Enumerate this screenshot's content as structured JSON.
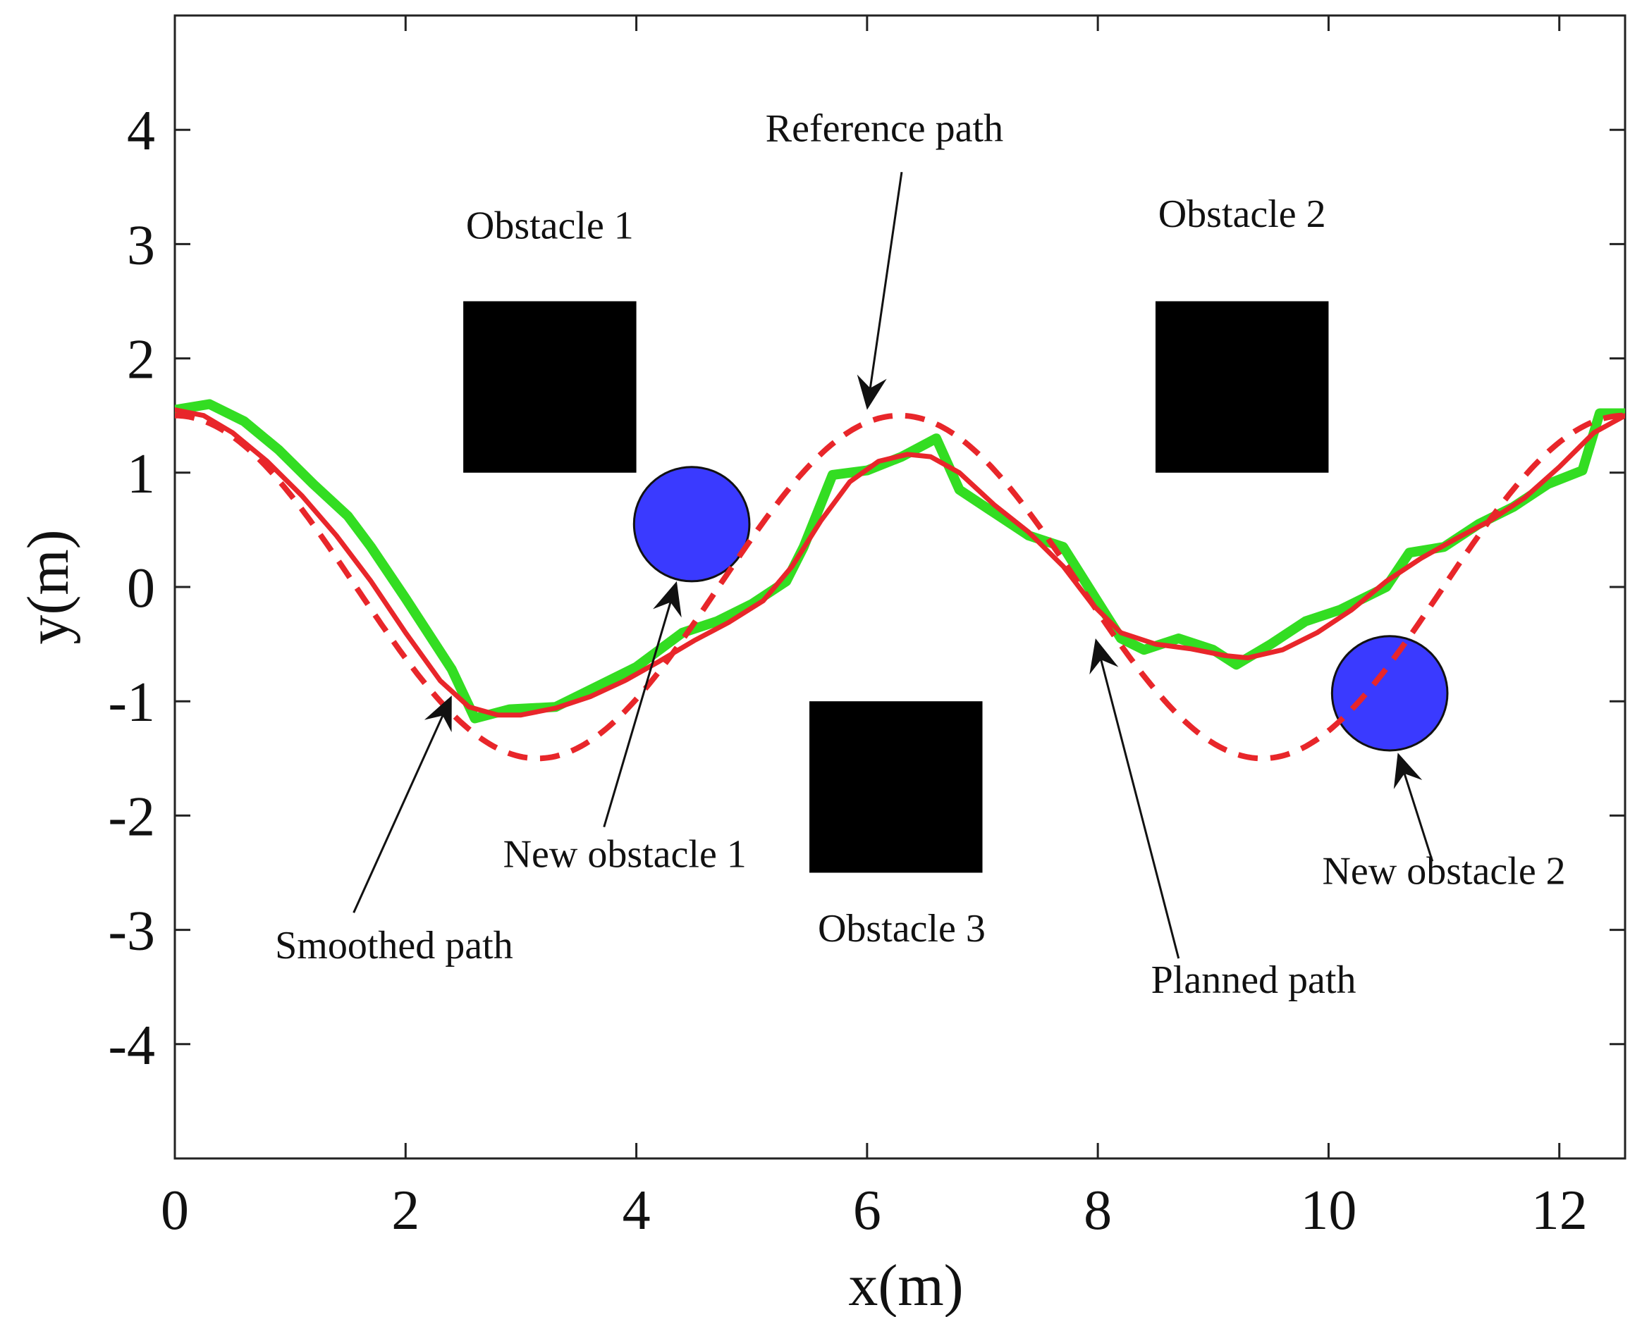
{
  "chart_data": {
    "type": "line",
    "title": "",
    "xlabel": "x(m)",
    "ylabel": "y(m)",
    "xlim": [
      0,
      12.57
    ],
    "ylim": [
      -5,
      5
    ],
    "xticks": [
      0,
      2,
      4,
      6,
      8,
      10,
      12
    ],
    "yticks": [
      -4,
      -3,
      -2,
      -1,
      0,
      1,
      2,
      3,
      4
    ],
    "xtick_labels": [
      "0",
      "2",
      "4",
      "6",
      "8",
      "10",
      "12"
    ],
    "ytick_labels": [
      "-4",
      "-3",
      "-2",
      "-1",
      "0",
      "1",
      "2",
      "3",
      "4"
    ],
    "grid": false,
    "colors": {
      "reference": "#e8262a",
      "smoothed": "#e8262a",
      "planned": "#33dd22",
      "static_obstacle": "#000000",
      "new_obstacle": "#3a3aff"
    },
    "series": [
      {
        "name": "Reference path",
        "style": "dashed",
        "formula": "y = 1.5*cos(x)",
        "x_range": [
          0,
          12.57
        ]
      },
      {
        "name": "Planned path",
        "style": "solid",
        "x": [
          0,
          0.3,
          0.6,
          0.9,
          1.2,
          1.5,
          1.7,
          2.0,
          2.4,
          2.6,
          2.9,
          3.3,
          3.7,
          4.0,
          4.4,
          4.7,
          5.0,
          5.3,
          5.45,
          5.7,
          6.0,
          6.3,
          6.6,
          6.8,
          7.1,
          7.4,
          7.7,
          7.95,
          8.2,
          8.4,
          8.7,
          9.0,
          9.2,
          9.5,
          9.8,
          10.1,
          10.5,
          10.7,
          11.0,
          11.3,
          11.6,
          11.9,
          12.2,
          12.35,
          12.57
        ],
        "y": [
          1.55,
          1.6,
          1.45,
          1.2,
          0.9,
          0.62,
          0.35,
          -0.1,
          -0.72,
          -1.15,
          -1.07,
          -1.05,
          -0.85,
          -0.7,
          -0.4,
          -0.3,
          -0.15,
          0.05,
          0.35,
          0.98,
          1.02,
          1.14,
          1.3,
          0.85,
          0.65,
          0.45,
          0.35,
          -0.05,
          -0.45,
          -0.55,
          -0.45,
          -0.55,
          -0.68,
          -0.5,
          -0.3,
          -0.2,
          0.0,
          0.3,
          0.35,
          0.55,
          0.7,
          0.9,
          1.02,
          1.52,
          1.52
        ]
      },
      {
        "name": "Smoothed path",
        "style": "solid",
        "x": [
          0,
          0.25,
          0.5,
          0.8,
          1.1,
          1.4,
          1.7,
          2.0,
          2.3,
          2.55,
          2.8,
          3.0,
          3.3,
          3.6,
          3.9,
          4.2,
          4.5,
          4.8,
          5.1,
          5.35,
          5.6,
          5.85,
          6.1,
          6.35,
          6.55,
          6.8,
          7.1,
          7.4,
          7.7,
          7.95,
          8.2,
          8.5,
          8.8,
          9.1,
          9.3,
          9.6,
          9.9,
          10.2,
          10.5,
          10.8,
          11.1,
          11.4,
          11.7,
          12.0,
          12.3,
          12.57
        ],
        "y": [
          1.55,
          1.5,
          1.35,
          1.1,
          0.8,
          0.45,
          0.05,
          -0.4,
          -0.82,
          -1.05,
          -1.12,
          -1.12,
          -1.06,
          -0.96,
          -0.82,
          -0.65,
          -0.47,
          -0.31,
          -0.12,
          0.18,
          0.58,
          0.92,
          1.1,
          1.16,
          1.14,
          1.0,
          0.72,
          0.48,
          0.18,
          -0.15,
          -0.4,
          -0.5,
          -0.54,
          -0.6,
          -0.62,
          -0.55,
          -0.4,
          -0.2,
          0.05,
          0.25,
          0.42,
          0.58,
          0.78,
          1.05,
          1.35,
          1.5
        ]
      }
    ],
    "obstacles": [
      {
        "name": "Obstacle 1",
        "shape": "square",
        "x": [
          2.5,
          4.0
        ],
        "y": [
          1.0,
          2.5
        ]
      },
      {
        "name": "Obstacle 2",
        "shape": "square",
        "x": [
          8.5,
          10.0
        ],
        "y": [
          1.0,
          2.5
        ]
      },
      {
        "name": "Obstacle 3",
        "shape": "square",
        "x": [
          5.5,
          7.0
        ],
        "y": [
          -2.5,
          -1.0
        ]
      },
      {
        "name": "New obstacle 1",
        "shape": "circle",
        "cx": 4.48,
        "cy": 0.55,
        "r": 0.5
      },
      {
        "name": "New obstacle 2",
        "shape": "circle",
        "cx": 10.53,
        "cy": -0.93,
        "r": 0.5
      }
    ],
    "annotations": [
      {
        "id": "ann-reference",
        "text": "Reference path",
        "text_at": [
          6.15,
          3.9
        ],
        "tail": [
          6.3,
          3.63
        ],
        "head": [
          6.0,
          1.55
        ]
      },
      {
        "id": "ann-obstacle1",
        "text": "Obstacle 1",
        "text_at": [
          3.25,
          3.05
        ]
      },
      {
        "id": "ann-obstacle2",
        "text": "Obstacle 2",
        "text_at": [
          9.25,
          3.15
        ]
      },
      {
        "id": "ann-obstacle3",
        "text": "Obstacle 3",
        "text_at": [
          6.3,
          -3.1
        ]
      },
      {
        "id": "ann-new1",
        "text": "New obstacle 1",
        "text_at": [
          3.9,
          -2.45
        ],
        "tail": [
          3.72,
          -2.1
        ],
        "head": [
          4.35,
          0.05
        ]
      },
      {
        "id": "ann-new2",
        "text": "New obstacle 2",
        "text_at": [
          11.0,
          -2.6
        ],
        "tail": [
          10.9,
          -2.4
        ],
        "head": [
          10.6,
          -1.45
        ]
      },
      {
        "id": "ann-smoothed",
        "text": "Smoothed path",
        "text_at": [
          1.9,
          -3.25
        ],
        "tail": [
          1.55,
          -2.85
        ],
        "head": [
          2.4,
          -0.95
        ]
      },
      {
        "id": "ann-planned",
        "text": "Planned path",
        "text_at": [
          9.35,
          -3.55
        ],
        "tail": [
          8.7,
          -3.25
        ],
        "head": [
          7.98,
          -0.45
        ]
      }
    ]
  }
}
